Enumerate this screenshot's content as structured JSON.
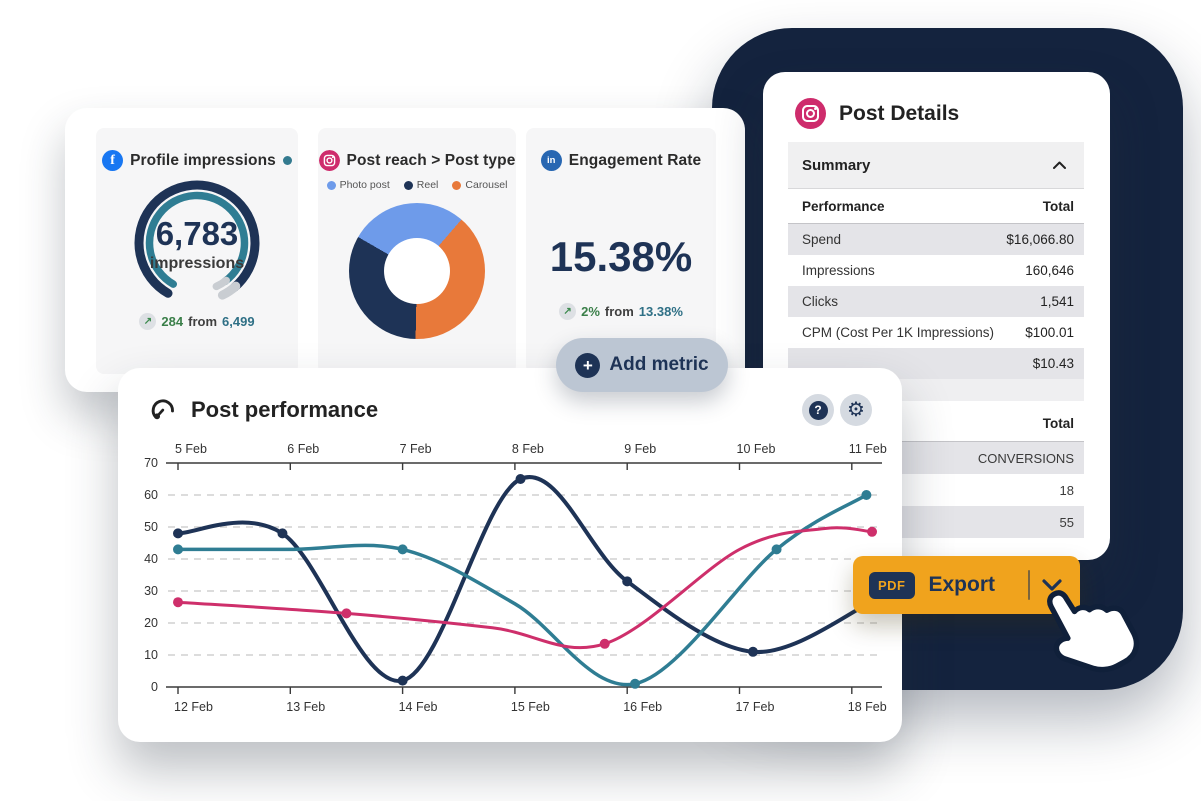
{
  "colors": {
    "navy": "#1E3356",
    "decor_navy": "#14233E",
    "teal": "#2F7D93",
    "pink": "#CE2F6B",
    "light_blue": "#6E9BEA",
    "orange_slice": "#E8793A",
    "export_orange": "#F0A31D",
    "green": "#3A7F49",
    "gray_row": "#E4E4E8"
  },
  "metrics_panel": {
    "cards": [
      {
        "platform_icon": "facebook-icon",
        "title": "Profile impressions",
        "gauge": {
          "value_label": "6,783",
          "unit_label": "impressions",
          "percent": 95
        },
        "delta": {
          "arrow": "↗",
          "change": "284",
          "from_word": "from",
          "previous": "6,499"
        }
      },
      {
        "platform_icon": "instagram-icon",
        "title": "Post reach > Post type",
        "legend": [
          {
            "label": "Photo post",
            "color": "#6E9BEA"
          },
          {
            "label": "Reel",
            "color": "#1E3356"
          },
          {
            "label": "Carousel",
            "color": "#E8793A"
          }
        ],
        "donut": {
          "start_angle_deg": 300,
          "segments": [
            {
              "label": "Photo post",
              "color": "#6E9BEA",
              "percent": 28
            },
            {
              "label": "Carousel",
              "color": "#E8793A",
              "percent": 39
            },
            {
              "label": "Reel",
              "color": "#1E3356",
              "percent": 33
            }
          ]
        }
      },
      {
        "platform_icon": "linkedin-icon",
        "title": "Engagement Rate",
        "big_value": "15.38%",
        "delta": {
          "arrow": "↗",
          "change": "2%",
          "from_word": "from",
          "previous": "13.38%"
        }
      }
    ],
    "add_metric_label": "Add metric",
    "plus_glyph": "+"
  },
  "post_details": {
    "title": "Post Details",
    "summary_header": "Summary",
    "performance_table": {
      "header": {
        "label": "Performance",
        "value": "Total"
      },
      "rows": [
        {
          "label": "Spend",
          "value": "$16,066.80"
        },
        {
          "label": "Impressions",
          "value": "160,646"
        },
        {
          "label": "Clicks",
          "value": "1,541"
        },
        {
          "label": "CPM (Cost Per 1K Impressions)",
          "value": "$100.01"
        },
        {
          "label": "",
          "value": "$10.43"
        }
      ]
    },
    "totals_table": {
      "header": "Total",
      "rows": [
        "CONVERSIONS",
        "18",
        "55"
      ]
    }
  },
  "post_performance": {
    "title": "Post performance",
    "help_glyph": "?",
    "gear_glyph": "⚙"
  },
  "export": {
    "badge": "PDF",
    "label": "Export"
  },
  "chart_data": {
    "type": "line",
    "title": "Post performance",
    "x_axis_top": [
      "5 Feb",
      "6 Feb",
      "7 Feb",
      "8 Feb",
      "9 Feb",
      "10 Feb",
      "11 Feb"
    ],
    "x_axis_bottom": [
      "12 Feb",
      "13 Feb",
      "14 Feb",
      "15 Feb",
      "16 Feb",
      "17 Feb",
      "18 Feb"
    ],
    "ylim": [
      0,
      70
    ],
    "yticks": [
      0,
      10,
      20,
      30,
      40,
      50,
      60,
      70
    ],
    "grid": "dashed-horizontal",
    "legend_position": "none",
    "series": [
      {
        "name": "navy-series",
        "color": "#1E3356",
        "width": 4,
        "points": [
          [
            0,
            48
          ],
          [
            0.93,
            48
          ],
          [
            2,
            2
          ],
          [
            3.05,
            65
          ],
          [
            4,
            33
          ],
          [
            5.12,
            11
          ],
          [
            6.15,
            26
          ]
        ],
        "dot_points": [
          [
            0,
            48
          ],
          [
            0.93,
            48
          ],
          [
            2,
            2
          ],
          [
            3.05,
            65
          ],
          [
            4,
            33
          ],
          [
            5.12,
            11
          ]
        ]
      },
      {
        "name": "teal-series",
        "color": "#2F7D93",
        "width": 3.5,
        "points": [
          [
            0,
            43
          ],
          [
            1,
            43
          ],
          [
            2,
            43
          ],
          [
            3,
            26
          ],
          [
            4.07,
            1
          ],
          [
            5.33,
            43
          ],
          [
            6.13,
            60
          ]
        ],
        "dot_points": [
          [
            0,
            43
          ],
          [
            2,
            43
          ],
          [
            4.07,
            1
          ],
          [
            5.33,
            43
          ],
          [
            6.13,
            60
          ]
        ]
      },
      {
        "name": "pink-series",
        "color": "#CE2F6B",
        "width": 3,
        "points": [
          [
            0,
            26.5
          ],
          [
            1.5,
            23
          ],
          [
            2.8,
            18.5
          ],
          [
            3.8,
            13.5
          ],
          [
            5,
            43
          ],
          [
            5.75,
            49.5
          ],
          [
            6.18,
            48.5
          ]
        ],
        "dot_points": [
          [
            0,
            26.5
          ],
          [
            1.5,
            23
          ],
          [
            3.8,
            13.5
          ],
          [
            6.18,
            48.5
          ]
        ]
      }
    ]
  }
}
